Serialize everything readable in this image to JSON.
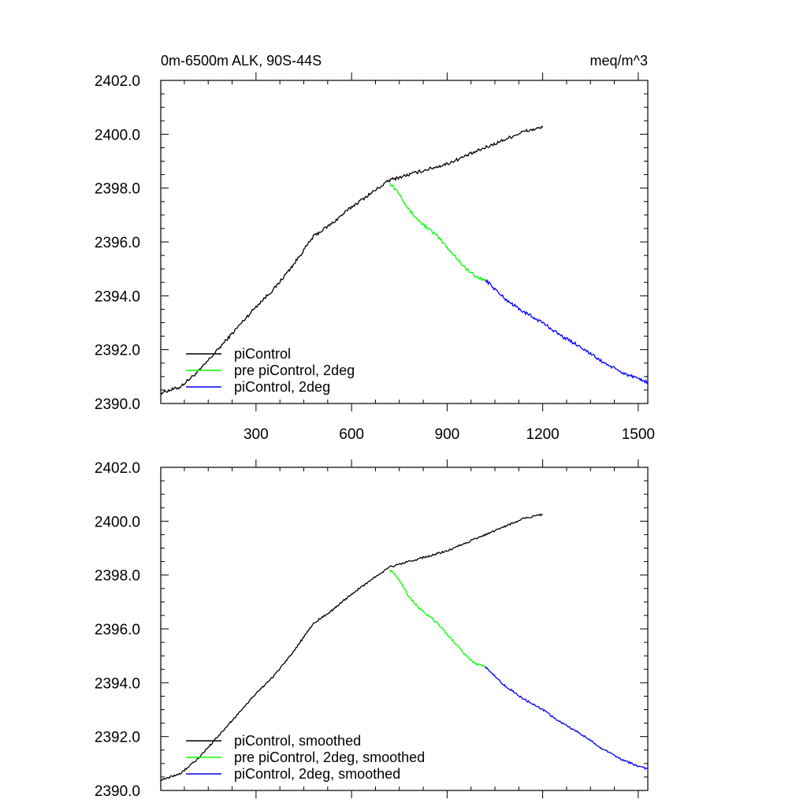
{
  "header": {
    "left_title": "0m-6500m ALK, 90S-44S",
    "right_title": "meq/m^3"
  },
  "colors": {
    "black": "#000000",
    "green": "#00ff00",
    "blue": "#0000ff"
  },
  "chart_data": [
    {
      "type": "line",
      "title": "0m-6500m ALK, 90S-44S",
      "units": "meq/m^3",
      "xlim": [
        1,
        1530
      ],
      "ylim": [
        2390.0,
        2402.0
      ],
      "x_ticks": [
        300,
        600,
        900,
        1200,
        1500
      ],
      "x_tick_labels": [
        "300",
        "600",
        "900",
        "1200",
        "1500"
      ],
      "y_ticks": [
        2390.0,
        2392.0,
        2394.0,
        2396.0,
        2398.0,
        2400.0,
        2402.0
      ],
      "y_tick_labels": [
        "2390.0",
        "2392.0",
        "2394.0",
        "2396.0",
        "2398.0",
        "2400.0",
        "2402.0"
      ],
      "legend_position": "bottom-left",
      "series": [
        {
          "name": "piControl",
          "color": "#000000",
          "x": [
            1,
            60,
            120,
            180,
            240,
            300,
            360,
            420,
            480,
            540,
            600,
            660,
            720,
            780,
            840,
            900,
            960,
            1020,
            1080,
            1140,
            1200
          ],
          "y": [
            2390.4,
            2390.6,
            2391.2,
            2392.0,
            2392.8,
            2393.6,
            2394.3,
            2395.2,
            2396.2,
            2396.7,
            2397.3,
            2397.8,
            2398.3,
            2398.5,
            2398.7,
            2398.9,
            2399.2,
            2399.5,
            2399.8,
            2400.1,
            2400.25
          ]
        },
        {
          "name": "pre piControl, 2deg",
          "color": "#00ff00",
          "x": [
            720,
            750,
            780,
            810,
            840,
            870,
            900,
            930,
            960,
            990,
            1020
          ],
          "y": [
            2398.2,
            2397.8,
            2397.2,
            2396.8,
            2396.5,
            2396.2,
            2395.8,
            2395.4,
            2395.0,
            2394.7,
            2394.6
          ]
        },
        {
          "name": "piControl, 2deg",
          "color": "#0000ff",
          "x": [
            1020,
            1080,
            1140,
            1200,
            1260,
            1320,
            1380,
            1440,
            1500,
            1530
          ],
          "y": [
            2394.6,
            2393.9,
            2393.4,
            2393.0,
            2392.5,
            2392.1,
            2391.6,
            2391.2,
            2390.9,
            2390.8
          ]
        }
      ]
    },
    {
      "type": "line",
      "xlim": [
        1,
        1530
      ],
      "ylim": [
        2390.0,
        2402.0
      ],
      "x_ticks": [
        300,
        600,
        900,
        1200,
        1500
      ],
      "x_tick_labels": [],
      "y_ticks": [
        2390.0,
        2392.0,
        2394.0,
        2396.0,
        2398.0,
        2400.0,
        2402.0
      ],
      "y_tick_labels": [
        "2390.0",
        "2392.0",
        "2394.0",
        "2396.0",
        "2398.0",
        "2400.0",
        "2402.0"
      ],
      "legend_position": "bottom-left",
      "series": [
        {
          "name": "piControl, smoothed",
          "color": "#000000",
          "x": [
            1,
            60,
            120,
            180,
            240,
            300,
            360,
            420,
            480,
            540,
            600,
            660,
            720,
            780,
            840,
            900,
            960,
            1020,
            1080,
            1140,
            1200
          ],
          "y": [
            2390.4,
            2390.6,
            2391.2,
            2392.0,
            2392.8,
            2393.6,
            2394.3,
            2395.2,
            2396.2,
            2396.7,
            2397.3,
            2397.8,
            2398.3,
            2398.5,
            2398.7,
            2398.9,
            2399.2,
            2399.5,
            2399.8,
            2400.1,
            2400.25
          ]
        },
        {
          "name": "pre piControl, 2deg, smoothed",
          "color": "#00ff00",
          "x": [
            720,
            750,
            780,
            810,
            840,
            870,
            900,
            930,
            960,
            990,
            1020
          ],
          "y": [
            2398.2,
            2397.8,
            2397.2,
            2396.8,
            2396.5,
            2396.2,
            2395.8,
            2395.4,
            2395.0,
            2394.7,
            2394.6
          ]
        },
        {
          "name": "piControl, 2deg, smoothed",
          "color": "#0000ff",
          "x": [
            1020,
            1080,
            1140,
            1200,
            1260,
            1320,
            1380,
            1440,
            1500,
            1530
          ],
          "y": [
            2394.6,
            2393.9,
            2393.4,
            2393.0,
            2392.5,
            2392.1,
            2391.6,
            2391.2,
            2390.9,
            2390.8
          ]
        }
      ]
    }
  ]
}
